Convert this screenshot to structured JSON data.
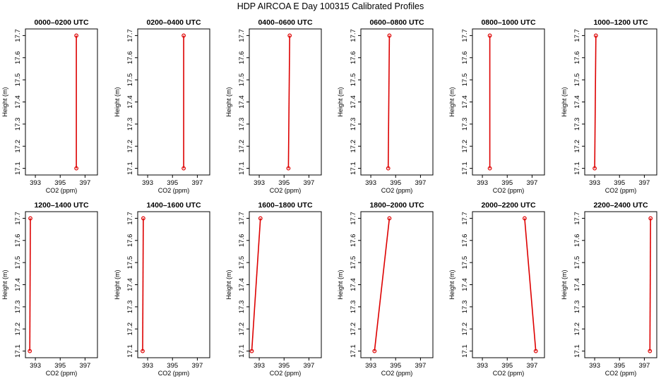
{
  "title": "HDP AIRCOA E  Day 100315  Calibrated Profiles",
  "colors": {
    "profile_line": "#dd0000",
    "profile_point": "#dd0000",
    "axis": "#000000"
  },
  "chart_data": [
    {
      "type": "line",
      "title": "0000–0200 UTC",
      "xlabel": "CO2 (ppm)",
      "ylabel": "Height (m)",
      "xlim": [
        392.2,
        398.0
      ],
      "ylim": [
        17.07,
        17.73
      ],
      "xticks": [
        "393",
        "395",
        "397"
      ],
      "xtick_values": [
        393,
        395,
        397
      ],
      "yticks": [
        "17.1",
        "17.2",
        "17.3",
        "17.4",
        "17.5",
        "17.6",
        "17.7"
      ],
      "ytick_values": [
        17.1,
        17.2,
        17.3,
        17.4,
        17.5,
        17.6,
        17.7
      ],
      "series": [
        {
          "x": [
            396.3,
            396.3
          ],
          "y": [
            17.1,
            17.7
          ]
        }
      ]
    },
    {
      "type": "line",
      "title": "0200–0400 UTC",
      "xlabel": "CO2 (ppm)",
      "ylabel": "Height (m)",
      "xlim": [
        392.2,
        398.0
      ],
      "ylim": [
        17.07,
        17.73
      ],
      "xticks": [
        "393",
        "395",
        "397"
      ],
      "xtick_values": [
        393,
        395,
        397
      ],
      "yticks": [
        "17.1",
        "17.2",
        "17.3",
        "17.4",
        "17.5",
        "17.6",
        "17.7"
      ],
      "ytick_values": [
        17.1,
        17.2,
        17.3,
        17.4,
        17.5,
        17.6,
        17.7
      ],
      "series": [
        {
          "x": [
            395.9,
            395.9
          ],
          "y": [
            17.1,
            17.7
          ]
        }
      ]
    },
    {
      "type": "line",
      "title": "0400–0600 UTC",
      "xlabel": "CO2 (ppm)",
      "ylabel": "Height (m)",
      "xlim": [
        392.2,
        398.0
      ],
      "ylim": [
        17.07,
        17.73
      ],
      "xticks": [
        "393",
        "395",
        "397"
      ],
      "xtick_values": [
        393,
        395,
        397
      ],
      "yticks": [
        "17.1",
        "17.2",
        "17.3",
        "17.4",
        "17.5",
        "17.6",
        "17.7"
      ],
      "ytick_values": [
        17.1,
        17.2,
        17.3,
        17.4,
        17.5,
        17.6,
        17.7
      ],
      "series": [
        {
          "x": [
            395.35,
            395.45
          ],
          "y": [
            17.1,
            17.7
          ]
        }
      ]
    },
    {
      "type": "line",
      "title": "0600–0800 UTC",
      "xlabel": "CO2 (ppm)",
      "ylabel": "Height (m)",
      "xlim": [
        392.2,
        398.0
      ],
      "ylim": [
        17.07,
        17.73
      ],
      "xticks": [
        "393",
        "395",
        "397"
      ],
      "xtick_values": [
        393,
        395,
        397
      ],
      "yticks": [
        "17.1",
        "17.2",
        "17.3",
        "17.4",
        "17.5",
        "17.6",
        "17.7"
      ],
      "ytick_values": [
        17.1,
        17.2,
        17.3,
        17.4,
        17.5,
        17.6,
        17.7
      ],
      "series": [
        {
          "x": [
            394.4,
            394.5
          ],
          "y": [
            17.1,
            17.7
          ]
        }
      ]
    },
    {
      "type": "line",
      "title": "0800–1000 UTC",
      "xlabel": "CO2 (ppm)",
      "ylabel": "Height (m)",
      "xlim": [
        392.2,
        398.0
      ],
      "ylim": [
        17.07,
        17.73
      ],
      "xticks": [
        "393",
        "395",
        "397"
      ],
      "xtick_values": [
        393,
        395,
        397
      ],
      "yticks": [
        "17.1",
        "17.2",
        "17.3",
        "17.4",
        "17.5",
        "17.6",
        "17.7"
      ],
      "ytick_values": [
        17.1,
        17.2,
        17.3,
        17.4,
        17.5,
        17.6,
        17.7
      ],
      "series": [
        {
          "x": [
            393.6,
            393.6
          ],
          "y": [
            17.1,
            17.7
          ]
        }
      ]
    },
    {
      "type": "line",
      "title": "1000–1200 UTC",
      "xlabel": "CO2 (ppm)",
      "ylabel": "Height (m)",
      "xlim": [
        392.2,
        398.0
      ],
      "ylim": [
        17.07,
        17.73
      ],
      "xticks": [
        "393",
        "395",
        "397"
      ],
      "xtick_values": [
        393,
        395,
        397
      ],
      "yticks": [
        "17.1",
        "17.2",
        "17.3",
        "17.4",
        "17.5",
        "17.6",
        "17.7"
      ],
      "ytick_values": [
        17.1,
        17.2,
        17.3,
        17.4,
        17.5,
        17.6,
        17.7
      ],
      "series": [
        {
          "x": [
            393.0,
            393.1
          ],
          "y": [
            17.1,
            17.7
          ]
        }
      ]
    },
    {
      "type": "line",
      "title": "1200–1400 UTC",
      "xlabel": "CO2 (ppm)",
      "ylabel": "Height (m)",
      "xlim": [
        392.2,
        398.0
      ],
      "ylim": [
        17.07,
        17.73
      ],
      "xticks": [
        "393",
        "395",
        "397"
      ],
      "xtick_values": [
        393,
        395,
        397
      ],
      "yticks": [
        "17.1",
        "17.2",
        "17.3",
        "17.4",
        "17.5",
        "17.6",
        "17.7"
      ],
      "ytick_values": [
        17.1,
        17.2,
        17.3,
        17.4,
        17.5,
        17.6,
        17.7
      ],
      "series": [
        {
          "x": [
            392.55,
            392.6
          ],
          "y": [
            17.1,
            17.7
          ]
        }
      ]
    },
    {
      "type": "line",
      "title": "1400–1600 UTC",
      "xlabel": "CO2 (ppm)",
      "ylabel": "Height (m)",
      "xlim": [
        392.2,
        398.0
      ],
      "ylim": [
        17.07,
        17.73
      ],
      "xticks": [
        "393",
        "395",
        "397"
      ],
      "xtick_values": [
        393,
        395,
        397
      ],
      "yticks": [
        "17.1",
        "17.2",
        "17.3",
        "17.4",
        "17.5",
        "17.6",
        "17.7"
      ],
      "ytick_values": [
        17.1,
        17.2,
        17.3,
        17.4,
        17.5,
        17.6,
        17.7
      ],
      "series": [
        {
          "x": [
            392.6,
            392.65
          ],
          "y": [
            17.1,
            17.7
          ]
        }
      ]
    },
    {
      "type": "line",
      "title": "1600–1800 UTC",
      "xlabel": "CO2 (ppm)",
      "ylabel": "Height (m)",
      "xlim": [
        392.2,
        398.0
      ],
      "ylim": [
        17.07,
        17.73
      ],
      "xticks": [
        "393",
        "395",
        "397"
      ],
      "xtick_values": [
        393,
        395,
        397
      ],
      "yticks": [
        "17.1",
        "17.2",
        "17.3",
        "17.4",
        "17.5",
        "17.6",
        "17.7"
      ],
      "ytick_values": [
        17.1,
        17.2,
        17.3,
        17.4,
        17.5,
        17.6,
        17.7
      ],
      "series": [
        {
          "x": [
            392.4,
            393.1
          ],
          "y": [
            17.1,
            17.7
          ]
        }
      ]
    },
    {
      "type": "line",
      "title": "1800–2000 UTC",
      "xlabel": "CO2 (ppm)",
      "ylabel": "Height (m)",
      "xlim": [
        392.2,
        398.0
      ],
      "ylim": [
        17.07,
        17.73
      ],
      "xticks": [
        "393",
        "395",
        "397"
      ],
      "xtick_values": [
        393,
        395,
        397
      ],
      "yticks": [
        "17.1",
        "17.2",
        "17.3",
        "17.4",
        "17.5",
        "17.6",
        "17.7"
      ],
      "ytick_values": [
        17.1,
        17.2,
        17.3,
        17.4,
        17.5,
        17.6,
        17.7
      ],
      "series": [
        {
          "x": [
            393.3,
            394.5
          ],
          "y": [
            17.1,
            17.7
          ]
        }
      ]
    },
    {
      "type": "line",
      "title": "2000–2200 UTC",
      "xlabel": "CO2 (ppm)",
      "ylabel": "Height (m)",
      "xlim": [
        392.2,
        398.0
      ],
      "ylim": [
        17.07,
        17.73
      ],
      "xticks": [
        "393",
        "395",
        "397"
      ],
      "xtick_values": [
        393,
        395,
        397
      ],
      "yticks": [
        "17.1",
        "17.2",
        "17.3",
        "17.4",
        "17.5",
        "17.6",
        "17.7"
      ],
      "ytick_values": [
        17.1,
        17.2,
        17.3,
        17.4,
        17.5,
        17.6,
        17.7
      ],
      "series": [
        {
          "x": [
            397.3,
            396.4
          ],
          "y": [
            17.1,
            17.7
          ]
        }
      ]
    },
    {
      "type": "line",
      "title": "2200–2400 UTC",
      "xlabel": "CO2 (ppm)",
      "ylabel": "Height (m)",
      "xlim": [
        392.2,
        398.0
      ],
      "ylim": [
        17.07,
        17.73
      ],
      "xticks": [
        "393",
        "395",
        "397"
      ],
      "xtick_values": [
        393,
        395,
        397
      ],
      "yticks": [
        "17.1",
        "17.2",
        "17.3",
        "17.4",
        "17.5",
        "17.6",
        "17.7"
      ],
      "ytick_values": [
        17.1,
        17.2,
        17.3,
        17.4,
        17.5,
        17.6,
        17.7
      ],
      "series": [
        {
          "x": [
            397.45,
            397.5
          ],
          "y": [
            17.1,
            17.7
          ]
        }
      ]
    }
  ]
}
